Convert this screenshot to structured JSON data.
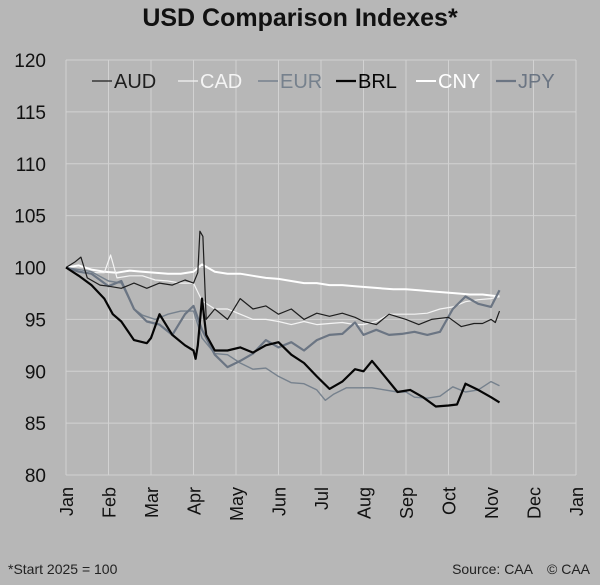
{
  "title": "USD Comparison Indexes*",
  "footnote": "*Start 2025 = 100",
  "source": "Source: CAA",
  "copyright": "© CAA",
  "colors": {
    "background": "#b7b7b7",
    "grid": "#d2d2d2",
    "AUD": "#1e1e1e",
    "CAD": "#f4f4f4",
    "EUR": "#76818d",
    "BRL": "#050505",
    "CNY": "#ffffff",
    "JPY": "#6b7583"
  },
  "chart_data": {
    "type": "line",
    "title": "USD Comparison Indexes*",
    "xlabel": "",
    "ylabel": "",
    "ylim": [
      80,
      120
    ],
    "yticks": [
      80,
      85,
      90,
      95,
      100,
      105,
      110,
      115,
      120
    ],
    "xlim": [
      0,
      12
    ],
    "xticks": [
      {
        "x": 0,
        "label": "Jan"
      },
      {
        "x": 1,
        "label": "Feb"
      },
      {
        "x": 2,
        "label": "Mar"
      },
      {
        "x": 3,
        "label": "Apr"
      },
      {
        "x": 4,
        "label": "May"
      },
      {
        "x": 5,
        "label": "Jun"
      },
      {
        "x": 6,
        "label": "Jul"
      },
      {
        "x": 7,
        "label": "Aug"
      },
      {
        "x": 8,
        "label": "Sep"
      },
      {
        "x": 9,
        "label": "Oct"
      },
      {
        "x": 10,
        "label": "Nov"
      },
      {
        "x": 11,
        "label": "Dec"
      },
      {
        "x": 12,
        "label": "Jan"
      }
    ],
    "grid": true,
    "legend_position": "top",
    "series": [
      {
        "name": "AUD",
        "values": [
          [
            0,
            100
          ],
          [
            0.2,
            100.5
          ],
          [
            0.35,
            101
          ],
          [
            0.5,
            99
          ],
          [
            0.8,
            98.3
          ],
          [
            1,
            98.2
          ],
          [
            1.3,
            98
          ],
          [
            1.6,
            98.5
          ],
          [
            1.9,
            98
          ],
          [
            2.2,
            98.5
          ],
          [
            2.5,
            98.3
          ],
          [
            2.8,
            98.8
          ],
          [
            3.0,
            98.5
          ],
          [
            3.1,
            99.5
          ],
          [
            3.15,
            103.5
          ],
          [
            3.22,
            103
          ],
          [
            3.3,
            95
          ],
          [
            3.5,
            96
          ],
          [
            3.8,
            95
          ],
          [
            4.1,
            97
          ],
          [
            4.4,
            96
          ],
          [
            4.7,
            96.3
          ],
          [
            5,
            95.5
          ],
          [
            5.3,
            96
          ],
          [
            5.6,
            95
          ],
          [
            5.9,
            95.6
          ],
          [
            6.2,
            95.3
          ],
          [
            6.5,
            95.6
          ],
          [
            6.8,
            95.2
          ],
          [
            7,
            94.8
          ],
          [
            7.3,
            94.5
          ],
          [
            7.6,
            95.5
          ],
          [
            8,
            95
          ],
          [
            8.3,
            94.5
          ],
          [
            8.6,
            95
          ],
          [
            9,
            95.2
          ],
          [
            9.3,
            94.3
          ],
          [
            9.6,
            94.6
          ],
          [
            9.8,
            94.6
          ],
          [
            10,
            95
          ],
          [
            10.1,
            94.7
          ],
          [
            10.2,
            95.8
          ]
        ]
      },
      {
        "name": "CAD",
        "values": [
          [
            0,
            100
          ],
          [
            0.3,
            99.8
          ],
          [
            0.6,
            99.5
          ],
          [
            0.9,
            99.5
          ],
          [
            1.05,
            101.2
          ],
          [
            1.2,
            99
          ],
          [
            1.5,
            99.2
          ],
          [
            1.8,
            99.2
          ],
          [
            2.1,
            98.8
          ],
          [
            2.4,
            98.7
          ],
          [
            2.7,
            98.5
          ],
          [
            3.0,
            98.5
          ],
          [
            3.2,
            96.8
          ],
          [
            3.5,
            96
          ],
          [
            3.8,
            96
          ],
          [
            4.1,
            95.5
          ],
          [
            4.4,
            95
          ],
          [
            4.7,
            95
          ],
          [
            5,
            94.8
          ],
          [
            5.3,
            94.5
          ],
          [
            5.6,
            94.8
          ],
          [
            5.9,
            94.5
          ],
          [
            6.2,
            94.6
          ],
          [
            6.5,
            94.7
          ],
          [
            6.8,
            94.5
          ],
          [
            7,
            94.5
          ],
          [
            7.3,
            94.8
          ],
          [
            7.6,
            95.5
          ],
          [
            7.9,
            95.5
          ],
          [
            8.2,
            95.5
          ],
          [
            8.5,
            95.6
          ],
          [
            8.8,
            96
          ],
          [
            9.1,
            96.2
          ],
          [
            9.4,
            96.7
          ],
          [
            9.7,
            96.9
          ],
          [
            10,
            97
          ],
          [
            10.2,
            97.2
          ]
        ]
      },
      {
        "name": "EUR",
        "values": [
          [
            0,
            100
          ],
          [
            0.3,
            99.8
          ],
          [
            0.6,
            99.6
          ],
          [
            1,
            98.7
          ],
          [
            1.3,
            98.5
          ],
          [
            1.6,
            96
          ],
          [
            1.8,
            95.4
          ],
          [
            2.1,
            95
          ],
          [
            2.4,
            95.5
          ],
          [
            2.7,
            95.8
          ],
          [
            3.0,
            95.8
          ],
          [
            3.2,
            93.2
          ],
          [
            3.5,
            91.7
          ],
          [
            3.8,
            91.6
          ],
          [
            4.1,
            90.8
          ],
          [
            4.4,
            90.2
          ],
          [
            4.7,
            90.3
          ],
          [
            5,
            89.5
          ],
          [
            5.3,
            88.9
          ],
          [
            5.6,
            88.8
          ],
          [
            5.9,
            88.2
          ],
          [
            6.1,
            87.2
          ],
          [
            6.3,
            87.8
          ],
          [
            6.6,
            88.4
          ],
          [
            6.9,
            88.4
          ],
          [
            7.2,
            88.4
          ],
          [
            7.5,
            88.2
          ],
          [
            7.8,
            88
          ],
          [
            8,
            88
          ],
          [
            8.2,
            87.5
          ],
          [
            8.5,
            87.4
          ],
          [
            8.8,
            87.6
          ],
          [
            9.1,
            88.5
          ],
          [
            9.4,
            88
          ],
          [
            9.7,
            88.2
          ],
          [
            10,
            89
          ],
          [
            10.2,
            88.6
          ]
        ]
      },
      {
        "name": "BRL",
        "values": [
          [
            0,
            100
          ],
          [
            0.3,
            99.2
          ],
          [
            0.6,
            98.3
          ],
          [
            0.9,
            97
          ],
          [
            1.1,
            95.5
          ],
          [
            1.3,
            94.8
          ],
          [
            1.6,
            93
          ],
          [
            1.9,
            92.7
          ],
          [
            2.0,
            93.2
          ],
          [
            2.2,
            95.5
          ],
          [
            2.5,
            93.5
          ],
          [
            2.8,
            92.5
          ],
          [
            3,
            92
          ],
          [
            3.05,
            91.2
          ],
          [
            3.1,
            92.5
          ],
          [
            3.2,
            97
          ],
          [
            3.3,
            93.5
          ],
          [
            3.5,
            92
          ],
          [
            3.8,
            92
          ],
          [
            4.1,
            92.3
          ],
          [
            4.4,
            91.8
          ],
          [
            4.7,
            92.5
          ],
          [
            5,
            92.8
          ],
          [
            5.3,
            91.6
          ],
          [
            5.6,
            90.8
          ],
          [
            5.9,
            89.5
          ],
          [
            6.2,
            88.3
          ],
          [
            6.5,
            89
          ],
          [
            6.8,
            90.2
          ],
          [
            7,
            90
          ],
          [
            7.2,
            91
          ],
          [
            7.5,
            89.5
          ],
          [
            7.8,
            88
          ],
          [
            8.1,
            88.2
          ],
          [
            8.4,
            87.5
          ],
          [
            8.7,
            86.6
          ],
          [
            9,
            86.7
          ],
          [
            9.2,
            86.8
          ],
          [
            9.4,
            88.8
          ],
          [
            9.7,
            88.2
          ],
          [
            10,
            87.5
          ],
          [
            10.2,
            87
          ]
        ]
      },
      {
        "name": "CNY",
        "values": [
          [
            0,
            100
          ],
          [
            0.3,
            100.2
          ],
          [
            0.6,
            99.8
          ],
          [
            0.9,
            99.6
          ],
          [
            1.2,
            99.5
          ],
          [
            1.5,
            99.7
          ],
          [
            1.8,
            99.6
          ],
          [
            2.1,
            99.5
          ],
          [
            2.4,
            99.4
          ],
          [
            2.7,
            99.4
          ],
          [
            3.0,
            99.6
          ],
          [
            3.2,
            100.3
          ],
          [
            3.5,
            99.6
          ],
          [
            3.8,
            99.4
          ],
          [
            4.1,
            99.4
          ],
          [
            4.4,
            99.2
          ],
          [
            4.7,
            99
          ],
          [
            5,
            98.9
          ],
          [
            5.3,
            98.7
          ],
          [
            5.6,
            98.5
          ],
          [
            5.9,
            98.5
          ],
          [
            6.2,
            98.3
          ],
          [
            6.5,
            98.3
          ],
          [
            6.8,
            98.2
          ],
          [
            7.1,
            98.1
          ],
          [
            7.4,
            98
          ],
          [
            7.7,
            97.9
          ],
          [
            8,
            97.9
          ],
          [
            8.3,
            97.8
          ],
          [
            8.6,
            97.7
          ],
          [
            8.9,
            97.6
          ],
          [
            9.2,
            97.5
          ],
          [
            9.5,
            97.4
          ],
          [
            9.8,
            97.4
          ],
          [
            10,
            97.3
          ],
          [
            10.2,
            97.2
          ]
        ]
      },
      {
        "name": "JPY",
        "values": [
          [
            0,
            100
          ],
          [
            0.3,
            99.6
          ],
          [
            0.6,
            99.4
          ],
          [
            1,
            98.2
          ],
          [
            1.3,
            98.7
          ],
          [
            1.6,
            96
          ],
          [
            1.9,
            94.8
          ],
          [
            2.2,
            94.5
          ],
          [
            2.5,
            93.5
          ],
          [
            2.8,
            95.5
          ],
          [
            3.0,
            96.3
          ],
          [
            3.2,
            94
          ],
          [
            3.5,
            91.6
          ],
          [
            3.8,
            90.4
          ],
          [
            4.1,
            91
          ],
          [
            4.4,
            91.7
          ],
          [
            4.7,
            93
          ],
          [
            5,
            92.3
          ],
          [
            5.3,
            92.8
          ],
          [
            5.6,
            92
          ],
          [
            5.9,
            93
          ],
          [
            6.2,
            93.5
          ],
          [
            6.5,
            93.6
          ],
          [
            6.8,
            94.7
          ],
          [
            7,
            93.5
          ],
          [
            7.3,
            94
          ],
          [
            7.6,
            93.5
          ],
          [
            7.9,
            93.6
          ],
          [
            8.2,
            93.8
          ],
          [
            8.5,
            93.5
          ],
          [
            8.8,
            93.8
          ],
          [
            9.1,
            96
          ],
          [
            9.4,
            97.2
          ],
          [
            9.7,
            96.5
          ],
          [
            10,
            96.2
          ],
          [
            10.2,
            97.8
          ]
        ]
      }
    ]
  }
}
